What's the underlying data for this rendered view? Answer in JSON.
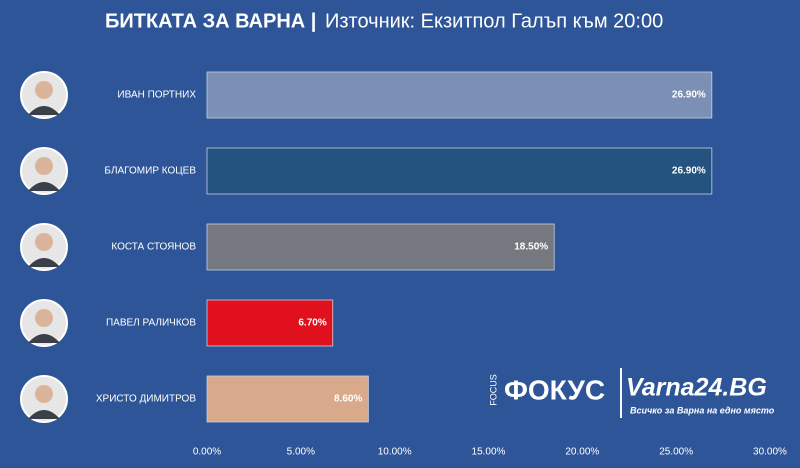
{
  "chart_data": {
    "type": "bar",
    "orientation": "horizontal",
    "title": "БИТКАТА ЗА ВАРНА |",
    "subtitle": "Източник: Екзитпол Галъп към 20:00",
    "categories": [
      "ИВАН ПОРТНИХ",
      "БЛАГОМИР КОЦЕВ",
      "КОСТА СТОЯНОВ",
      "ПАВЕЛ РАЛИЧКОВ",
      "ХРИСТО ДИМИТРОВ"
    ],
    "values": [
      26.9,
      26.9,
      18.5,
      6.7,
      8.6
    ],
    "value_labels": [
      "26.90%",
      "26.90%",
      "18.50%",
      "6.70%",
      "8.60%"
    ],
    "colors": [
      "#7c90b6",
      "#25537f",
      "#75787f",
      "#e0101c",
      "#d9a98b"
    ],
    "xlim": [
      0,
      30
    ],
    "xticks": [
      {
        "value": 0,
        "label": "0.00%"
      },
      {
        "value": 5,
        "label": "5.00%"
      },
      {
        "value": 10,
        "label": "10.00%"
      },
      {
        "value": 15,
        "label": "15.00%"
      },
      {
        "value": 20,
        "label": "20.00%"
      },
      {
        "value": 25,
        "label": "25.00%"
      },
      {
        "value": 30,
        "label": "30.00%"
      }
    ],
    "grid": false
  },
  "logos": {
    "focus_small": "FOCUS",
    "focus": "ФОКУС",
    "varna": "Varna24.BG",
    "tagline": "Всичко за Варна на едно място"
  }
}
